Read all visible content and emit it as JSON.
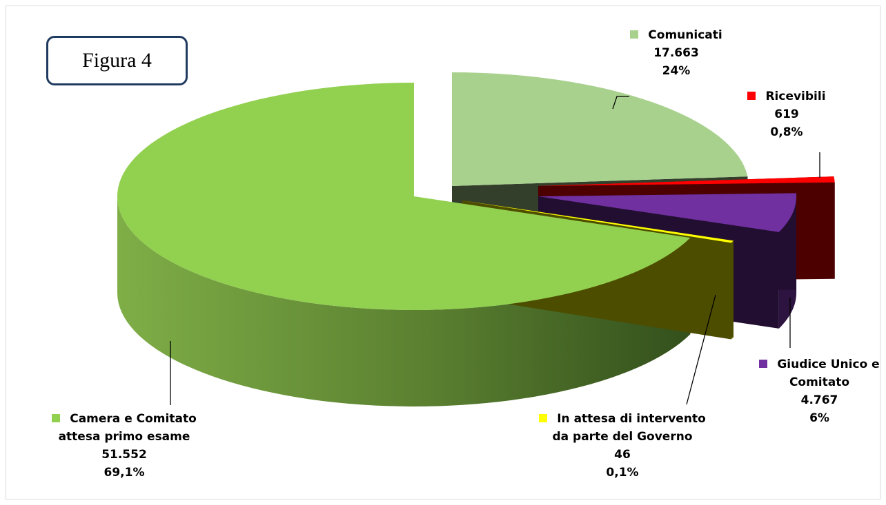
{
  "figure_label": "Figura 4",
  "chart_data": {
    "type": "pie",
    "title": "",
    "slices": [
      {
        "key": "comunicati",
        "legend": "Comunicati",
        "name_lines": [
          "Comunicati"
        ],
        "count": "17.663",
        "percent": "24%",
        "value": 17663,
        "color": "#a9d18e"
      },
      {
        "key": "ricevibili",
        "legend": "Ricevibili",
        "name_lines": [
          "Ricevibili"
        ],
        "count": "619",
        "percent": "0,8%",
        "value": 619,
        "color": "#ff0000"
      },
      {
        "key": "giudice",
        "legend": "Giudice Unico e Comitato",
        "name_lines": [
          "Giudice Unico e",
          "Comitato"
        ],
        "count": "4.767",
        "percent": "6%",
        "value": 4767,
        "color": "#7030a0"
      },
      {
        "key": "governo",
        "legend": "In attesa di intervento da parte del Governo",
        "name_lines": [
          "In attesa di intervento",
          "da parte del Governo"
        ],
        "count": "46",
        "percent": "0,1%",
        "value": 46,
        "color": "#ffff00"
      },
      {
        "key": "camera",
        "legend": "Camera e Comitato attesa primo esame",
        "name_lines": [
          "Camera e Comitato",
          "attesa primo esame"
        ],
        "count": "51.552",
        "percent": "69,1%",
        "value": 51552,
        "color": "#92d050"
      }
    ]
  }
}
